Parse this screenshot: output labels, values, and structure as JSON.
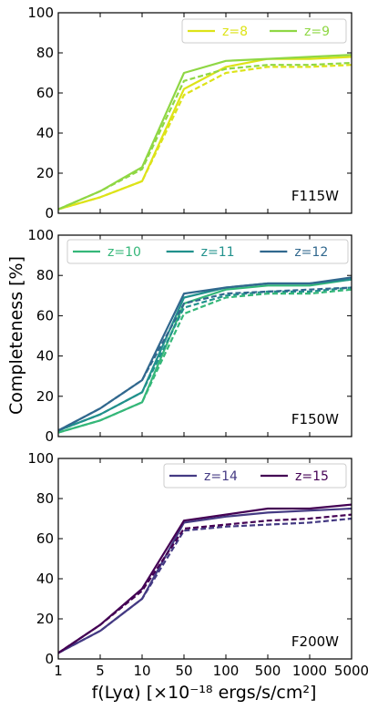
{
  "chart_data": [
    {
      "type": "line",
      "x_categories": [
        "1",
        "5",
        "10",
        "50",
        "100",
        "500",
        "1000",
        "5000"
      ],
      "ylim": [
        0,
        100
      ],
      "yticks": [
        "0",
        "20",
        "40",
        "60",
        "80",
        "100"
      ],
      "ylabel": "Completeness [%]",
      "xlabel": "f(Lyα) [×10⁻¹⁸ ergs/s/cm²]",
      "panel_label": "F115W",
      "legend_position": "top-right",
      "series": [
        {
          "name": "z=8",
          "color": "#dde318",
          "style": "solid",
          "values": [
            2,
            8,
            16,
            62,
            73,
            77,
            77,
            78
          ]
        },
        {
          "name": "z=8",
          "color": "#dde318",
          "style": "dashed",
          "values": [
            2,
            8,
            16,
            59,
            70,
            73,
            73,
            74
          ]
        },
        {
          "name": "z=9",
          "color": "#8fd744",
          "style": "solid",
          "values": [
            2,
            11,
            23,
            70,
            76,
            77,
            78,
            79
          ]
        },
        {
          "name": "z=9",
          "color": "#8fd744",
          "style": "dashed",
          "values": [
            2,
            11,
            22,
            66,
            72,
            74,
            74,
            75
          ]
        }
      ],
      "legend": [
        {
          "label": "z=8",
          "color": "#dde318"
        },
        {
          "label": "z=9",
          "color": "#8fd744"
        }
      ]
    },
    {
      "type": "line",
      "x_categories": [
        "1",
        "5",
        "10",
        "50",
        "100",
        "500",
        "1000",
        "5000"
      ],
      "ylim": [
        0,
        100
      ],
      "yticks": [
        "0",
        "20",
        "40",
        "60",
        "80",
        "100"
      ],
      "panel_label": "F150W",
      "legend_position": "top",
      "series": [
        {
          "name": "z=10",
          "color": "#35b779",
          "style": "solid",
          "values": [
            2,
            8,
            17,
            66,
            73,
            75,
            75,
            78
          ]
        },
        {
          "name": "z=10",
          "color": "#35b779",
          "style": "dashed",
          "values": [
            2,
            8,
            17,
            61,
            69,
            71,
            71,
            73
          ]
        },
        {
          "name": "z=11",
          "color": "#21918c",
          "style": "solid",
          "values": [
            3,
            11,
            22,
            69,
            74,
            76,
            76,
            78
          ]
        },
        {
          "name": "z=11",
          "color": "#21918c",
          "style": "dashed",
          "values": [
            3,
            11,
            22,
            64,
            70,
            72,
            72,
            74
          ]
        },
        {
          "name": "z=12",
          "color": "#31688e",
          "style": "solid",
          "values": [
            3,
            14,
            28,
            71,
            74,
            76,
            76,
            79
          ]
        },
        {
          "name": "z=12",
          "color": "#31688e",
          "style": "dashed",
          "values": [
            3,
            14,
            28,
            66,
            71,
            72,
            73,
            74
          ]
        }
      ],
      "legend": [
        {
          "label": "z=10",
          "color": "#35b779"
        },
        {
          "label": "z=11",
          "color": "#21918c"
        },
        {
          "label": "z=12",
          "color": "#31688e"
        }
      ]
    },
    {
      "type": "line",
      "x_categories": [
        "1",
        "5",
        "10",
        "50",
        "100",
        "500",
        "1000",
        "5000"
      ],
      "ylim": [
        0,
        100
      ],
      "yticks": [
        "0",
        "20",
        "40",
        "60",
        "80",
        "100"
      ],
      "panel_label": "F200W",
      "legend_position": "top-right",
      "series": [
        {
          "name": "z=14",
          "color": "#443a83",
          "style": "solid",
          "values": [
            3,
            14,
            30,
            68,
            71,
            73,
            74,
            75
          ]
        },
        {
          "name": "z=14",
          "color": "#443a83",
          "style": "dashed",
          "values": [
            3,
            14,
            30,
            64,
            66,
            67,
            68,
            70
          ]
        },
        {
          "name": "z=15",
          "color": "#440154",
          "style": "solid",
          "values": [
            3,
            17,
            35,
            69,
            72,
            75,
            75,
            77
          ]
        },
        {
          "name": "z=15",
          "color": "#440154",
          "style": "dashed",
          "values": [
            3,
            17,
            34,
            65,
            67,
            69,
            70,
            72
          ]
        }
      ],
      "legend": [
        {
          "label": "z=14",
          "color": "#443a83"
        },
        {
          "label": "z=15",
          "color": "#440154"
        }
      ]
    }
  ]
}
